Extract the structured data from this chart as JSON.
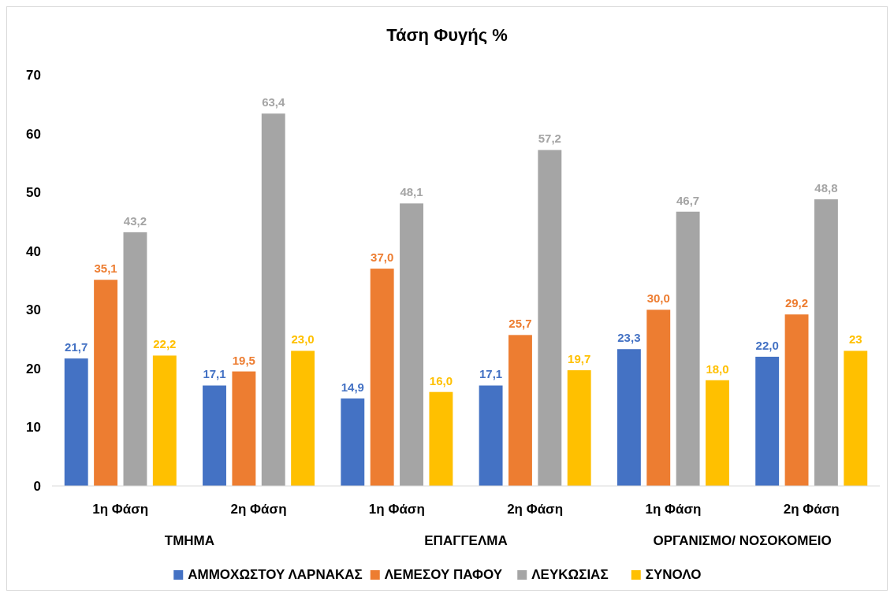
{
  "chart_data": {
    "type": "bar",
    "title": "Τάση Φυγής %",
    "categories": [
      "1η Φάση",
      "2η Φάση",
      "1η Φάση",
      "2η Φάση",
      "1η Φάση",
      "2η Φάση"
    ],
    "series": [
      {
        "name": "ΑΜΜΟΧΩΣΤΟΥ ΛΑΡΝΑΚΑΣ",
        "color": "#4472c4",
        "values": [
          21.7,
          17.1,
          14.9,
          17.1,
          23.3,
          22.0
        ],
        "value_labels": [
          "21,7",
          "17,1",
          "14,9",
          "17,1",
          "23,3",
          "22,0"
        ]
      },
      {
        "name": "ΛΕΜΕΣΟΥ ΠΑΦΟΥ",
        "color": "#ed7d31",
        "values": [
          35.1,
          19.5,
          37.0,
          25.7,
          30.0,
          29.2
        ],
        "value_labels": [
          "35,1",
          "19,5",
          "37,0",
          "25,7",
          "30,0",
          "29,2"
        ]
      },
      {
        "name": "ΛΕΥΚΩΣΙΑΣ",
        "color": "#a5a5a5",
        "values": [
          43.2,
          63.4,
          48.1,
          57.2,
          46.7,
          48.8
        ],
        "value_labels": [
          "43,2",
          "63,4",
          "48,1",
          "57,2",
          "46,7",
          "48,8"
        ]
      },
      {
        "name": "ΣΥΝΟΛΟ",
        "color": "#ffc000",
        "values": [
          22.2,
          23.0,
          16.0,
          19.7,
          18.0,
          23
        ],
        "value_labels": [
          "22,2",
          "23,0",
          "16,0",
          "19,7",
          "18,0",
          "23"
        ]
      }
    ],
    "annotations": [
      "ΤΜΗΜΑ",
      "ΕΠΑΓΓΕΛΜΑ",
      "ΟΡΓΑΝΙΣΜΟ/ ΝΟΣΟΚΟΜΕΙΟ"
    ],
    "ylim": [
      0,
      70
    ],
    "yticks": [
      0,
      10,
      20,
      30,
      40,
      50,
      60,
      70
    ],
    "grid": false,
    "legend": "bottom"
  }
}
